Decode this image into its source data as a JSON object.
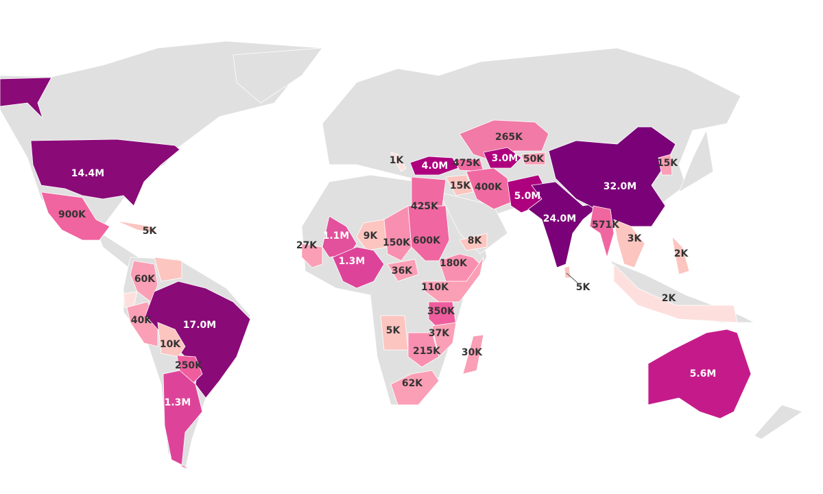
{
  "regions": [
    {
      "label": "14.4M",
      "color": "#8a0a78"
    },
    {
      "label": "900K",
      "color": "#f0649f"
    },
    {
      "label": "5K",
      "color": "#fcc5c0"
    },
    {
      "label": "60K",
      "color": "#fa9fb5"
    },
    {
      "label": null,
      "color": "#fcc5c0"
    },
    {
      "label": null,
      "color": "#fde0dd"
    },
    {
      "label": "40K",
      "color": "#fa9fb5"
    },
    {
      "label": "17.0M",
      "color": "#8a0a78"
    },
    {
      "label": "10K",
      "color": "#fcc5c0"
    },
    {
      "label": "250K",
      "color": "#ef5d9e"
    },
    {
      "label": "1.3M",
      "color": "#dd4499"
    },
    {
      "label": "27K",
      "color": "#fa9fb5"
    },
    {
      "label": "1.1M",
      "color": "#e3509b"
    },
    {
      "label": "9K",
      "color": "#fcc5c0"
    },
    {
      "label": "150K",
      "color": "#f98fb0"
    },
    {
      "label": "600K",
      "color": "#f066a0"
    },
    {
      "label": "425K",
      "color": "#f06aa1"
    },
    {
      "label": "1.3M",
      "color": "#dd4499"
    },
    {
      "label": "36K",
      "color": "#fa9fb5"
    },
    {
      "label": "180K",
      "color": "#f98fb0"
    },
    {
      "label": "8K",
      "color": "#fcc5c0"
    },
    {
      "label": "110K",
      "color": "#fa9fb5"
    },
    {
      "label": "350K",
      "color": "#ef5d9e"
    },
    {
      "label": "5K",
      "color": "#fcc5c0"
    },
    {
      "label": "37K",
      "color": "#fa9fb5"
    },
    {
      "label": "215K",
      "color": "#f98fb0"
    },
    {
      "label": "30K",
      "color": "#fa9fb5"
    },
    {
      "label": "62K",
      "color": "#fa9fb5"
    },
    {
      "label": "1K",
      "color": "#fde0dd"
    },
    {
      "label": "4.0M",
      "color": "#ae017e"
    },
    {
      "label": "475K",
      "color": "#f06aa1"
    },
    {
      "label": "265K",
      "color": "#f27aa6"
    },
    {
      "label": "3.0M",
      "color": "#ae017e"
    },
    {
      "label": "50K",
      "color": "#fa9fb5"
    },
    {
      "label": "15K",
      "color": "#fcc5c0"
    },
    {
      "label": "400K",
      "color": "#f06aa1"
    },
    {
      "label": "5.0M",
      "color": "#ae017e"
    },
    {
      "label": "24.0M",
      "color": "#7a0177"
    },
    {
      "label": "32.0M",
      "color": "#7a0177"
    },
    {
      "label": "15K",
      "color": "#fa9fb5"
    },
    {
      "label": "571K",
      "color": "#f066a0"
    },
    {
      "label": "3K",
      "color": "#fcc5c0"
    },
    {
      "label": "2K",
      "color": "#fcc5c0"
    },
    {
      "label": "5K",
      "color": "#fcc5c0"
    },
    {
      "label": "2K",
      "color": "#fde0dd"
    },
    {
      "label": "5.6M",
      "color": "#c51b8a"
    }
  ]
}
